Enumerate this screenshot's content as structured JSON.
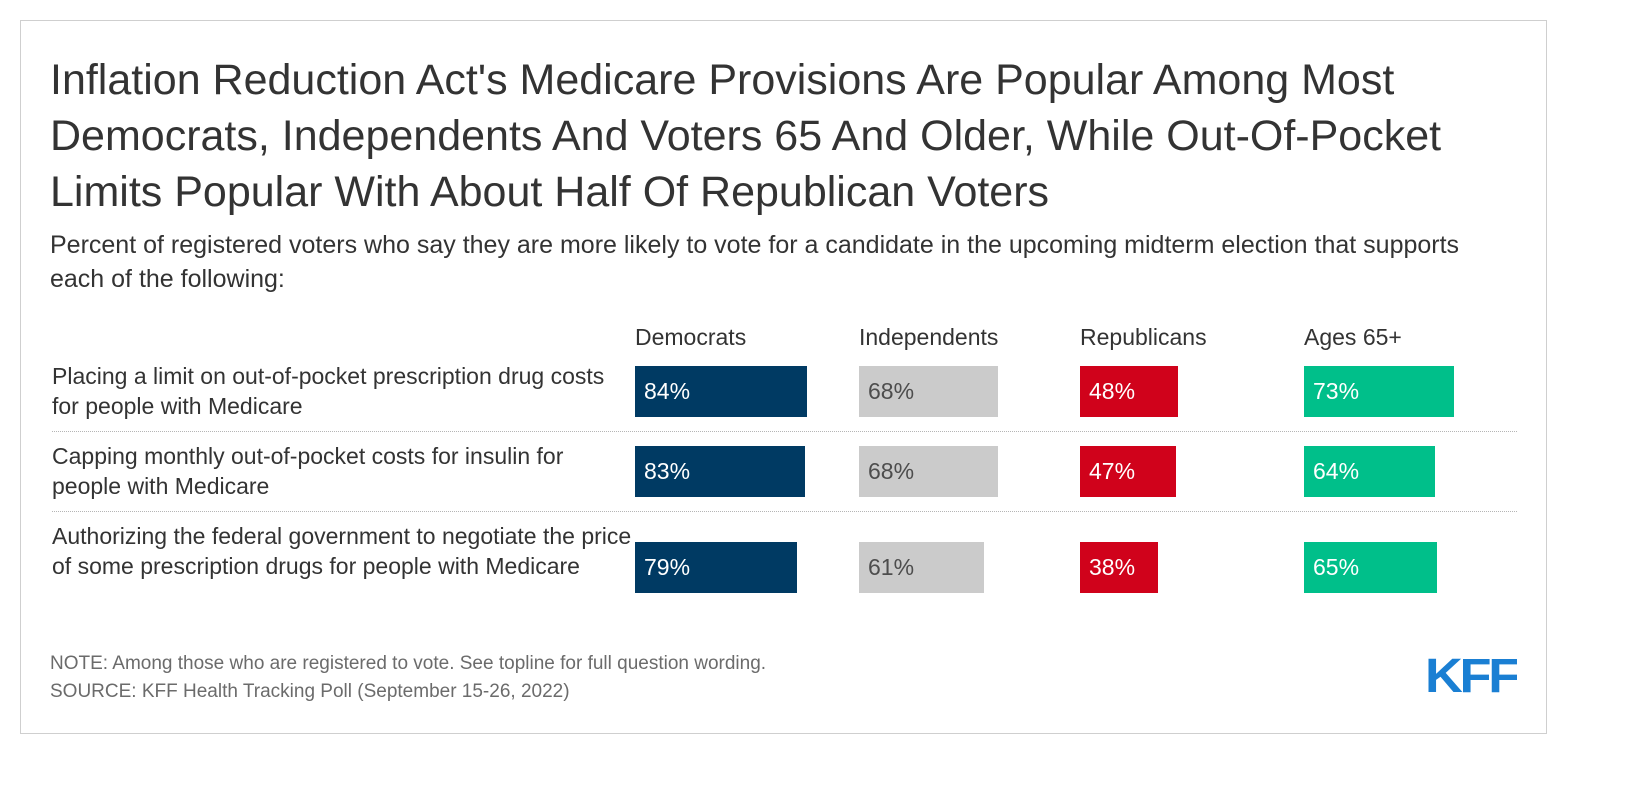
{
  "title": "Inflation Reduction Act's Medicare Provisions Are Popular Among Most Democrats, Independents And Voters 65 And Older, While Out-Of-Pocket Limits Popular With About Half Of Republican Voters",
  "subtitle": "Percent of registered voters who say they are more likely to vote for a candidate in the upcoming midterm election that supports each of the following:",
  "note": "NOTE: Among those who are registered to vote. See topline for full question wording.",
  "source": "SOURCE: KFF Health Tracking Poll (September 15-26, 2022)",
  "logo_text": "KFF",
  "colors": {
    "democrats": "#003a63",
    "independents": "#cbcbcb",
    "republicans": "#d0021b",
    "ages65": "#00bf8a",
    "logo": "#1a7fd3"
  },
  "chart_data": {
    "type": "bar",
    "categories": [
      "Placing a limit on out-of-pocket prescription drug costs for people with Medicare",
      "Capping monthly out-of-pocket costs for insulin for people with Medicare",
      "Authorizing the federal government to negotiate the price of some prescription drugs for people with Medicare"
    ],
    "series": [
      {
        "name": "Democrats",
        "values": [
          84,
          83,
          79
        ],
        "labels": [
          "84%",
          "83%",
          "79%"
        ]
      },
      {
        "name": "Independents",
        "values": [
          68,
          68,
          61
        ],
        "labels": [
          "68%",
          "68%",
          "61%"
        ]
      },
      {
        "name": "Republicans",
        "values": [
          48,
          47,
          38
        ],
        "labels": [
          "48%",
          "47%",
          "38%"
        ]
      },
      {
        "name": "Ages 65+",
        "values": [
          73,
          64,
          65
        ],
        "labels": [
          "73%",
          "64%",
          "65%"
        ]
      }
    ],
    "unit": "%",
    "ylim": [
      0,
      100
    ],
    "legend": "column headers above bars",
    "grid": false
  }
}
